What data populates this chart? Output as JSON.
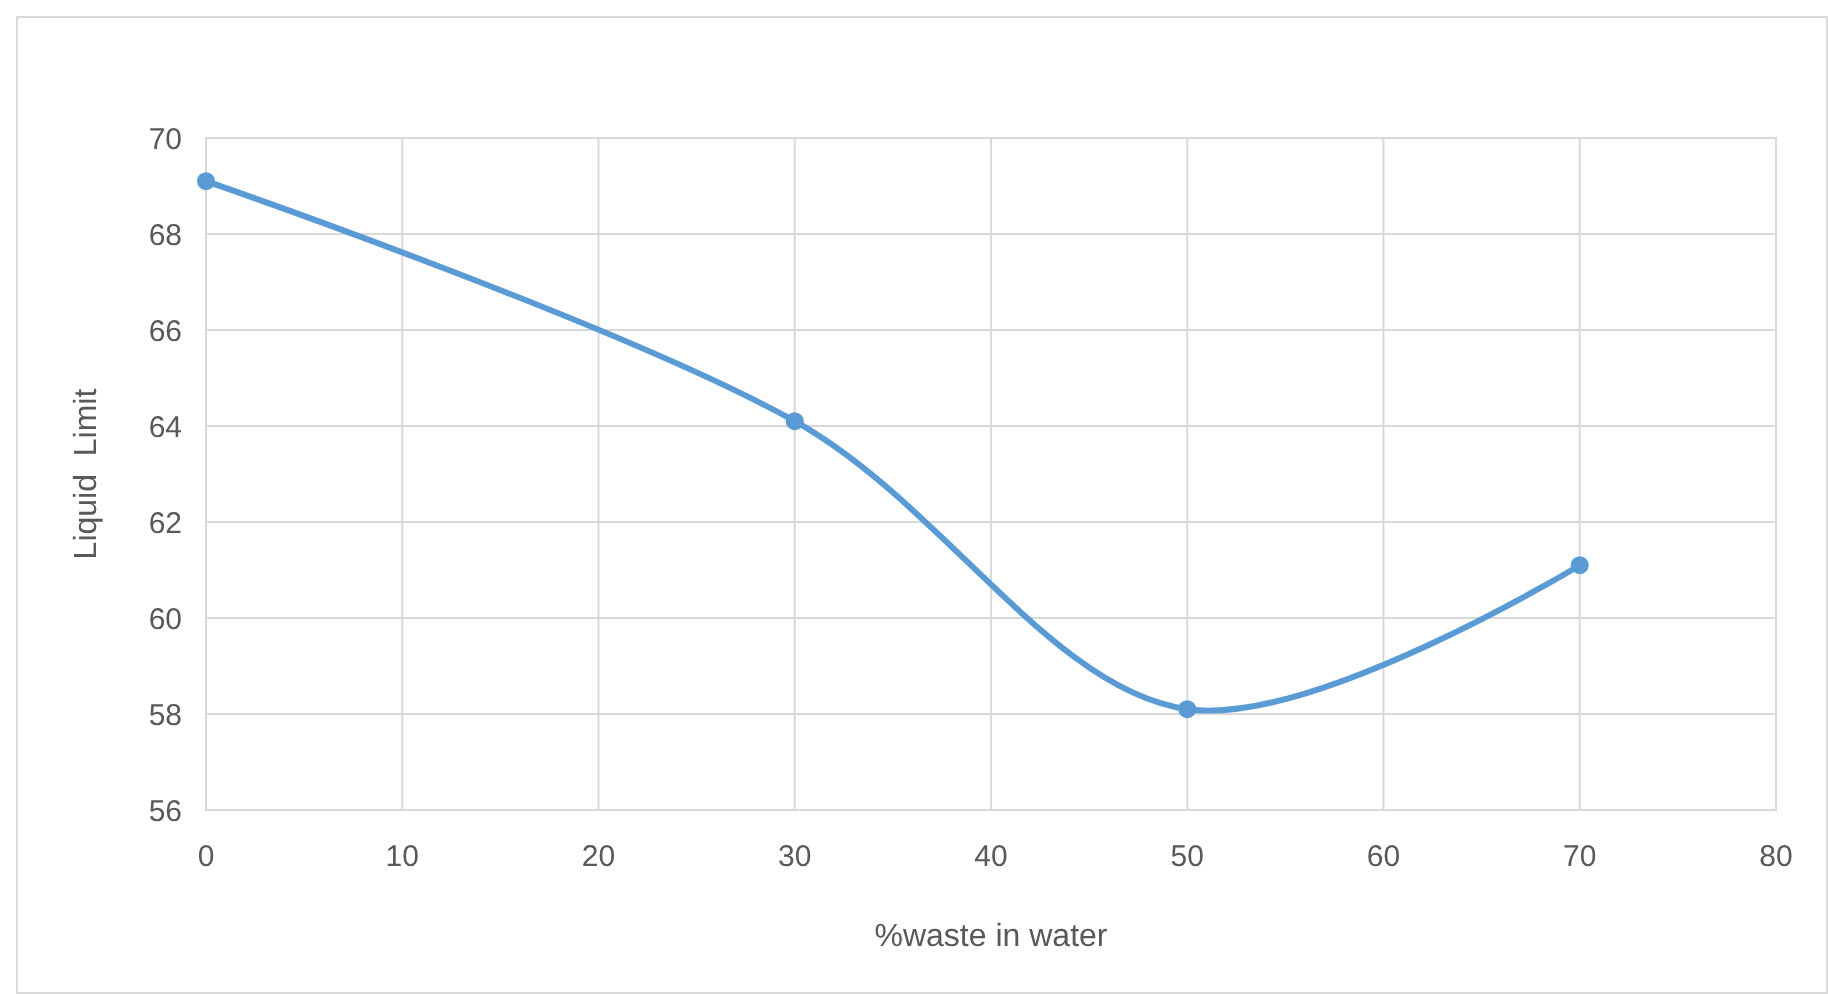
{
  "chart_data": {
    "type": "line",
    "xlabel": "%waste in water",
    "ylabel": "Liquid  Limit",
    "x": [
      0,
      30,
      50,
      70
    ],
    "series": [
      {
        "color": "#5b9bd5",
        "values": [
          69.1,
          64.1,
          58.1,
          61.1
        ]
      }
    ],
    "xlim": [
      0,
      80
    ],
    "xticks": [
      0,
      10,
      20,
      30,
      40,
      50,
      60,
      70,
      80
    ],
    "ylim": [
      56,
      70
    ],
    "yticks": [
      56,
      58,
      60,
      62,
      64,
      66,
      68,
      70
    ],
    "grid": true,
    "marker": "circle",
    "line_style": "solid"
  }
}
